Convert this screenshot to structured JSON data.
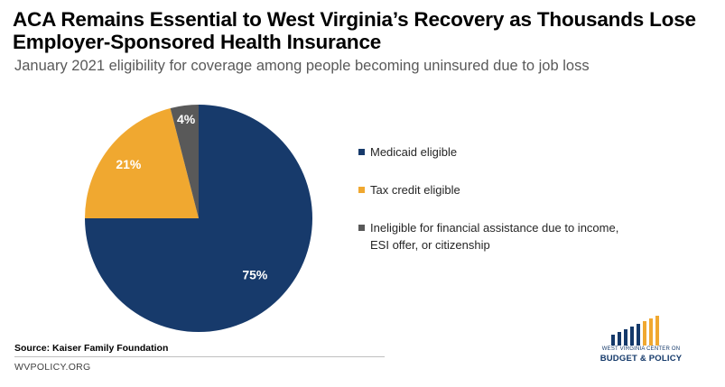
{
  "header": {
    "title": "ACA Remains Essential to West Virginia’s Recovery as Thousands Lose Employer-Sponsored Health Insurance",
    "subtitle": "January 2021 eligibility for coverage among people becoming uninsured due to job loss"
  },
  "chart_data": {
    "type": "pie",
    "title": "ACA Remains Essential to West Virginia’s Recovery as Thousands Lose Employer-Sponsored Health Insurance",
    "subtitle": "January 2021 eligibility for coverage among people becoming uninsured due to job loss",
    "categories": [
      "Medicaid eligible",
      "Tax credit eligible",
      "Ineligible for financial assistance due to income, ESI offer, or citizenship"
    ],
    "values": [
      75,
      21,
      4
    ],
    "data_labels": [
      "75%",
      "21%",
      "4%"
    ],
    "colors": [
      "#173a6b",
      "#f0a830",
      "#595959"
    ],
    "label_colors": [
      "#ffffff",
      "#ffffff",
      "#ffffff"
    ],
    "legend_position": "right"
  },
  "legend": {
    "items": [
      {
        "label": "Medicaid eligible",
        "color": "#173a6b"
      },
      {
        "label": "Tax credit eligible",
        "color": "#f0a830"
      },
      {
        "label": "Ineligible for financial assistance due to income, ESI offer, or citizenship",
        "color": "#595959"
      }
    ]
  },
  "source": "Source: Kaiser Family Foundation",
  "footer": "WVPOLICY.ORG",
  "logo": {
    "line1": "WEST VIRGINIA CENTER ON",
    "line2": "BUDGET & POLICY",
    "colors": [
      "#14396a",
      "#f0a830"
    ]
  }
}
